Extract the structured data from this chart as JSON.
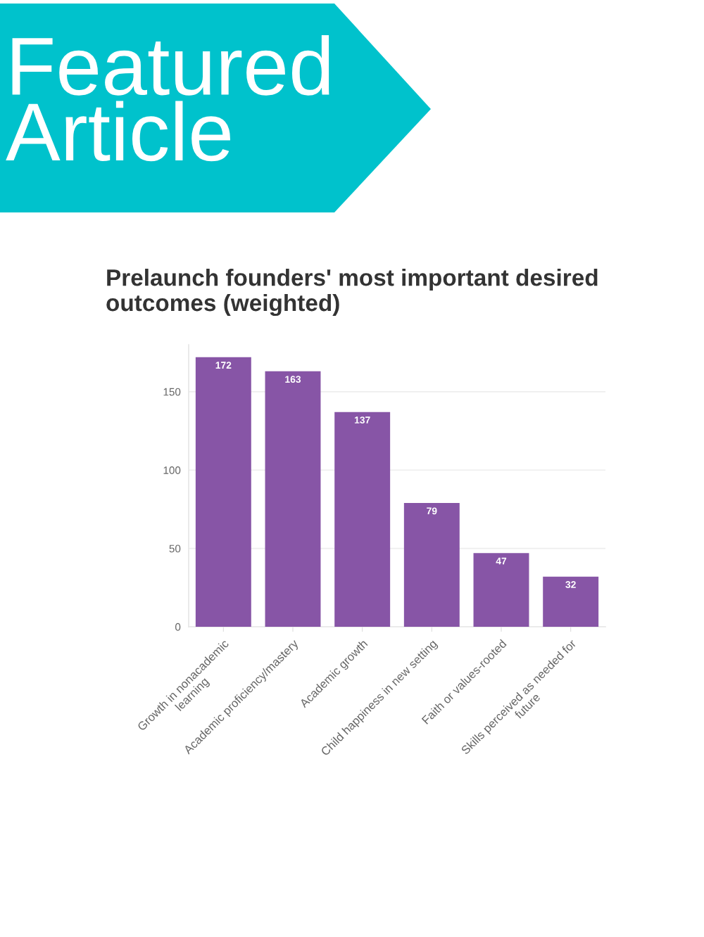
{
  "chart_data": {
    "type": "bar",
    "title": "Prelaunch founders' most important desired\noutcomes (weighted)",
    "categories": [
      "Growth in nonacademic\nlearning",
      "Academic proficiency/mastery",
      "Academic growth",
      "Child happiness in new setting",
      "Faith or values-rooted",
      "Skills perceived as needed for\nfuture"
    ],
    "values": [
      172,
      163,
      137,
      79,
      47,
      32
    ],
    "color": "#8755a6",
    "ylim": [
      0,
      180
    ],
    "yticks": [
      0,
      50,
      100,
      150
    ],
    "grid": "y",
    "data_labels": true,
    "annotations": [
      "Featured\nArticle"
    ]
  }
}
